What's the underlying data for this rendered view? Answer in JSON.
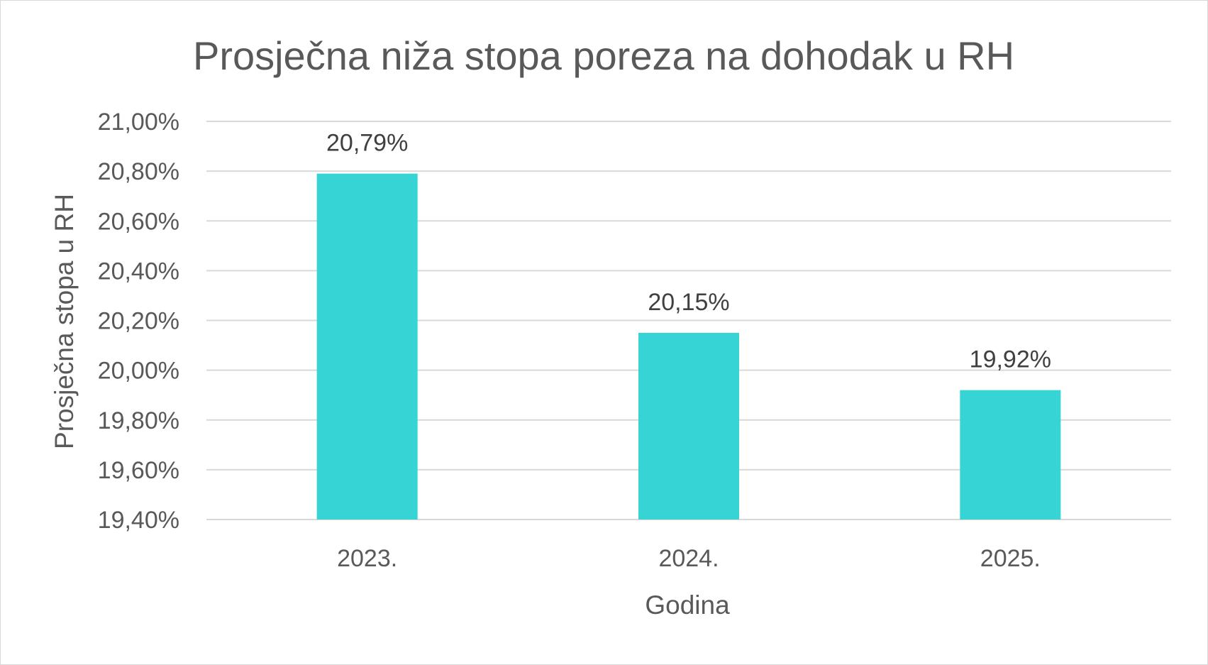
{
  "chart_data": {
    "type": "bar",
    "title": "Prosječna niža stopa poreza na dohodak u RH",
    "xlabel": "Godina",
    "ylabel": "Prosječna stopa u RH",
    "categories": [
      "2023.",
      "2024.",
      "2025."
    ],
    "values": [
      20.79,
      20.15,
      19.92
    ],
    "data_labels": [
      "20,79%",
      "20,15%",
      "19,92%"
    ],
    "ylim": [
      19.4,
      21.0
    ],
    "ytick_values": [
      19.4,
      19.6,
      19.8,
      20.0,
      20.2,
      20.4,
      20.6,
      20.8,
      21.0
    ],
    "ytick_labels": [
      "19,40%",
      "19,60%",
      "19,80%",
      "20,00%",
      "20,20%",
      "20,40%",
      "20,60%",
      "20,80%",
      "21,00%"
    ],
    "grid": true,
    "legend": "none",
    "bar_color": "#36d4d4"
  }
}
